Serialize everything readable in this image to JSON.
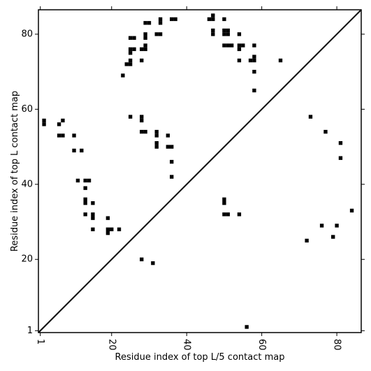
{
  "chart_data": {
    "type": "scatter",
    "title": "",
    "xlabel": "Residue index of top L/5 contact map",
    "ylabel": "Residue index of top L contact map",
    "xlim": [
      0.5,
      86.5
    ],
    "ylim": [
      0.5,
      86.5
    ],
    "xticks": [
      1,
      20,
      40,
      60,
      80
    ],
    "yticks": [
      1,
      20,
      40,
      60,
      80
    ],
    "grid": false,
    "marker": "square",
    "marker_color": "#000000",
    "diagonal_line": {
      "from": [
        0.5,
        0.5
      ],
      "to": [
        86.5,
        86.5
      ],
      "color": "#000000"
    },
    "series": [
      {
        "points": [
          [
            2,
            56
          ],
          [
            2,
            57
          ],
          [
            6,
            56
          ],
          [
            6,
            53
          ],
          [
            7,
            53
          ],
          [
            7,
            57
          ],
          [
            10,
            53
          ],
          [
            10,
            49
          ],
          [
            12,
            49
          ],
          [
            11,
            41
          ],
          [
            13,
            41
          ],
          [
            14,
            41
          ],
          [
            13,
            39
          ],
          [
            13,
            36
          ],
          [
            13,
            35
          ],
          [
            13,
            32
          ],
          [
            15,
            35
          ],
          [
            15,
            32
          ],
          [
            15,
            31
          ],
          [
            15,
            28
          ],
          [
            19,
            31
          ],
          [
            19,
            28
          ],
          [
            19,
            27
          ],
          [
            20,
            28
          ],
          [
            22,
            28
          ],
          [
            23,
            69
          ],
          [
            24,
            72
          ],
          [
            25,
            72
          ],
          [
            25,
            73
          ],
          [
            25,
            75
          ],
          [
            25,
            76
          ],
          [
            25,
            79
          ],
          [
            26,
            79
          ],
          [
            26,
            76
          ],
          [
            25,
            58
          ],
          [
            28,
            58
          ],
          [
            28,
            57
          ],
          [
            28,
            54
          ],
          [
            29,
            54
          ],
          [
            28,
            76
          ],
          [
            29,
            76
          ],
          [
            29,
            77
          ],
          [
            28,
            73
          ],
          [
            29,
            79
          ],
          [
            29,
            80
          ],
          [
            29,
            83
          ],
          [
            30,
            83
          ],
          [
            32,
            80
          ],
          [
            33,
            80
          ],
          [
            33,
            83
          ],
          [
            33,
            84
          ],
          [
            36,
            84
          ],
          [
            37,
            84
          ],
          [
            32,
            54
          ],
          [
            32,
            53
          ],
          [
            32,
            51
          ],
          [
            32,
            50
          ],
          [
            35,
            53
          ],
          [
            35,
            50
          ],
          [
            36,
            50
          ],
          [
            36,
            46
          ],
          [
            36,
            42
          ],
          [
            28,
            20
          ],
          [
            31,
            19
          ],
          [
            46,
            84
          ],
          [
            47,
            84
          ],
          [
            47,
            85
          ],
          [
            47,
            81
          ],
          [
            47,
            80
          ],
          [
            50,
            84
          ],
          [
            50,
            81
          ],
          [
            50,
            80
          ],
          [
            51,
            81
          ],
          [
            51,
            80
          ],
          [
            50,
            77
          ],
          [
            51,
            77
          ],
          [
            52,
            77
          ],
          [
            54,
            80
          ],
          [
            54,
            77
          ],
          [
            54,
            76
          ],
          [
            55,
            77
          ],
          [
            54,
            73
          ],
          [
            57,
            73
          ],
          [
            58,
            73
          ],
          [
            58,
            74
          ],
          [
            58,
            77
          ],
          [
            58,
            70
          ],
          [
            58,
            65
          ],
          [
            65,
            73
          ],
          [
            50,
            36
          ],
          [
            50,
            35
          ],
          [
            50,
            32
          ],
          [
            51,
            32
          ],
          [
            54,
            32
          ],
          [
            56,
            2
          ],
          [
            73,
            58
          ],
          [
            77,
            54
          ],
          [
            81,
            51
          ],
          [
            81,
            47
          ],
          [
            84,
            33
          ],
          [
            76,
            29
          ],
          [
            80,
            29
          ],
          [
            72,
            25
          ],
          [
            79,
            26
          ]
        ]
      }
    ]
  }
}
